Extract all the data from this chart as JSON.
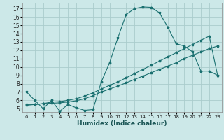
{
  "xlabel": "Humidex (Indice chaleur)",
  "bg_color": "#cce8e8",
  "line_color": "#1a7070",
  "grid_color": "#b8d8d8",
  "x_ticks": [
    0,
    1,
    2,
    3,
    4,
    5,
    6,
    7,
    8,
    9,
    10,
    11,
    12,
    13,
    14,
    15,
    16,
    17,
    18,
    19,
    20,
    21,
    22,
    23
  ],
  "y_ticks": [
    5,
    6,
    7,
    8,
    9,
    10,
    11,
    12,
    13,
    14,
    15,
    16,
    17
  ],
  "ylim": [
    4.6,
    17.7
  ],
  "xlim": [
    -0.5,
    23.5
  ],
  "curve1_x": [
    0,
    1,
    2,
    3,
    4,
    5,
    6,
    7,
    8,
    9,
    10,
    11,
    12,
    13,
    14,
    15,
    16,
    17,
    18,
    19,
    20,
    21,
    22,
    23
  ],
  "curve1_y": [
    7.0,
    6.0,
    5.0,
    6.0,
    4.7,
    5.5,
    5.1,
    4.8,
    4.9,
    8.2,
    10.5,
    13.5,
    16.3,
    17.0,
    17.2,
    17.15,
    16.5,
    14.8,
    12.8,
    12.5,
    11.8,
    9.5,
    9.5,
    9.0
  ],
  "curve2_x": [
    0,
    1,
    2,
    3,
    4,
    5,
    6,
    7,
    8,
    9,
    10,
    11,
    12,
    13,
    14,
    15,
    16,
    17,
    18,
    19,
    20,
    21,
    22,
    23
  ],
  "curve2_y": [
    5.5,
    5.5,
    5.6,
    5.65,
    5.7,
    5.8,
    5.95,
    6.2,
    6.55,
    7.0,
    7.35,
    7.7,
    8.1,
    8.5,
    8.9,
    9.3,
    9.7,
    10.1,
    10.5,
    11.0,
    11.4,
    11.8,
    12.2,
    12.5
  ],
  "curve3_x": [
    0,
    1,
    2,
    3,
    4,
    5,
    6,
    7,
    8,
    9,
    10,
    11,
    12,
    13,
    14,
    15,
    16,
    17,
    18,
    19,
    20,
    21,
    22,
    23
  ],
  "curve3_y": [
    5.4,
    5.5,
    5.6,
    5.8,
    5.85,
    6.0,
    6.2,
    6.5,
    6.9,
    7.35,
    7.8,
    8.2,
    8.7,
    9.2,
    9.7,
    10.2,
    10.7,
    11.2,
    11.7,
    12.2,
    12.7,
    13.2,
    13.7,
    9.0
  ]
}
